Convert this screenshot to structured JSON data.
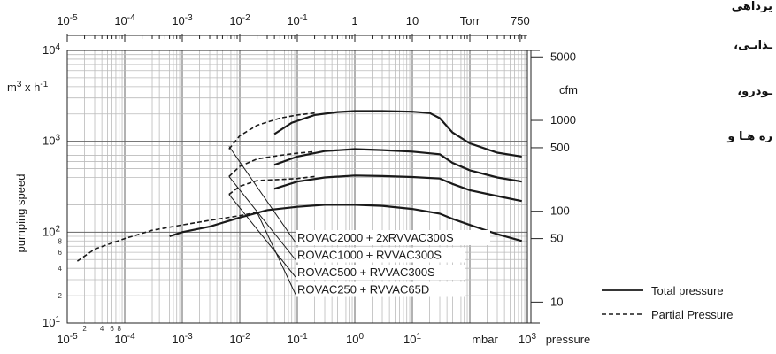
{
  "persian_text": [
    "یرداهی",
    "ـذایـی،",
    "ـودرو،",
    "ره هـا و"
  ],
  "chart_data": {
    "type": "line",
    "xscale": "log",
    "yscale": "log",
    "grid": true,
    "xlim": [
      1e-05,
      1000
    ],
    "ylim": [
      10,
      10000
    ],
    "bottom_ticks": [
      {
        "v": 1e-05,
        "base": "10",
        "exp": "-5"
      },
      {
        "v": 0.0001,
        "base": "10",
        "exp": "-4"
      },
      {
        "v": 0.001,
        "base": "10",
        "exp": "-3"
      },
      {
        "v": 0.01,
        "base": "10",
        "exp": "-2"
      },
      {
        "v": 0.1,
        "base": "10",
        "exp": "-1"
      },
      {
        "v": 1,
        "base": "10",
        "exp": "0"
      },
      {
        "v": 10,
        "base": "10",
        "exp": "1"
      },
      {
        "v": 1000,
        "base": "10",
        "exp": "3"
      }
    ],
    "bottom_minor_labels": [
      {
        "v": 2e-05,
        "text": "2"
      },
      {
        "v": 4e-05,
        "text": "4"
      },
      {
        "v": 6e-05,
        "text": "6"
      },
      {
        "v": 8e-05,
        "text": "8"
      }
    ],
    "xlabel_mbar": "mbar",
    "xlabel_pressure": "pressure",
    "top_ticks": [
      {
        "v": 1e-05,
        "base": "10",
        "exp": "-5"
      },
      {
        "v": 0.0001,
        "base": "10",
        "exp": "-4"
      },
      {
        "v": 0.001,
        "base": "10",
        "exp": "-3"
      },
      {
        "v": 0.01,
        "base": "10",
        "exp": "-2"
      },
      {
        "v": 0.1,
        "base": "10",
        "exp": "-1"
      },
      {
        "v": 1,
        "base": "1",
        "exp": ""
      },
      {
        "v": 10,
        "base": "10",
        "exp": ""
      },
      {
        "v": 100,
        "base": "Torr",
        "exp": ""
      },
      {
        "v": 750,
        "base": "750",
        "exp": ""
      }
    ],
    "left_ticks": [
      {
        "v": 10,
        "base": "10",
        "exp": "1"
      },
      {
        "v": 100,
        "base": "10",
        "exp": "2"
      },
      {
        "v": 1000,
        "base": "10",
        "exp": "3"
      },
      {
        "v": 10000,
        "base": "10",
        "exp": "4"
      }
    ],
    "left_minor_labels": [
      {
        "v": 20,
        "text": "2"
      },
      {
        "v": 40,
        "text": "4"
      },
      {
        "v": 60,
        "text": "6"
      },
      {
        "v": 80,
        "text": "8"
      }
    ],
    "ylabel_unit": {
      "base": "m",
      "sup1": "3",
      "mid": " x h",
      "sup2": "-1"
    },
    "ylabel": "pumping speed",
    "cfm_unit": "cfm",
    "cfm_ticks": [
      {
        "cfm": 5000,
        "text": "5000"
      },
      {
        "cfm": 1000,
        "text": "1000"
      },
      {
        "cfm": 500,
        "text": "500"
      },
      {
        "cfm": 100,
        "text": "100"
      },
      {
        "cfm": 50,
        "text": "50"
      },
      {
        "cfm": 10,
        "text": "10"
      }
    ],
    "series": [
      {
        "name": "ROVAC2000 + 2xRVVAC300S",
        "partial": [
          [
            0.0065,
            820
          ],
          [
            0.01,
            1150
          ],
          [
            0.02,
            1500
          ],
          [
            0.05,
            1800
          ],
          [
            0.1,
            1950
          ],
          [
            0.2,
            2050
          ]
        ],
        "total": [
          [
            0.04,
            1200
          ],
          [
            0.08,
            1600
          ],
          [
            0.2,
            1950
          ],
          [
            0.5,
            2100
          ],
          [
            1,
            2150
          ],
          [
            3,
            2150
          ],
          [
            10,
            2120
          ],
          [
            20,
            2050
          ],
          [
            30,
            1800
          ],
          [
            50,
            1250
          ],
          [
            100,
            950
          ],
          [
            300,
            750
          ],
          [
            800,
            680
          ]
        ]
      },
      {
        "name": "ROVAC1000 + RVVAC300S",
        "partial": [
          [
            0.0065,
            410
          ],
          [
            0.01,
            530
          ],
          [
            0.02,
            640
          ],
          [
            0.05,
            700
          ],
          [
            0.1,
            740
          ],
          [
            0.2,
            770
          ]
        ],
        "total": [
          [
            0.04,
            550
          ],
          [
            0.1,
            680
          ],
          [
            0.3,
            780
          ],
          [
            1,
            820
          ],
          [
            3,
            800
          ],
          [
            10,
            770
          ],
          [
            30,
            720
          ],
          [
            50,
            580
          ],
          [
            100,
            480
          ],
          [
            300,
            400
          ],
          [
            800,
            360
          ]
        ]
      },
      {
        "name": "ROVAC500 + RVVAC300S",
        "partial": [
          [
            0.0065,
            260
          ],
          [
            0.01,
            320
          ],
          [
            0.02,
            370
          ],
          [
            0.05,
            380
          ],
          [
            0.1,
            390
          ],
          [
            0.2,
            410
          ]
        ],
        "total": [
          [
            0.04,
            300
          ],
          [
            0.1,
            360
          ],
          [
            0.3,
            400
          ],
          [
            1,
            420
          ],
          [
            3,
            415
          ],
          [
            10,
            405
          ],
          [
            30,
            390
          ],
          [
            50,
            340
          ],
          [
            100,
            290
          ],
          [
            300,
            250
          ],
          [
            800,
            220
          ]
        ]
      },
      {
        "name": "ROVAC250 + RVVAC65D",
        "partial": [
          [
            1.5e-05,
            48
          ],
          [
            3e-05,
            65
          ],
          [
            0.0001,
            85
          ],
          [
            0.0003,
            105
          ],
          [
            0.001,
            120
          ],
          [
            0.003,
            135
          ],
          [
            0.01,
            152
          ],
          [
            0.02,
            165
          ]
        ],
        "total": [
          [
            0.0006,
            90
          ],
          [
            0.001,
            100
          ],
          [
            0.003,
            115
          ],
          [
            0.01,
            145
          ],
          [
            0.03,
            175
          ],
          [
            0.1,
            190
          ],
          [
            0.3,
            200
          ],
          [
            1,
            200
          ],
          [
            3,
            195
          ],
          [
            10,
            180
          ],
          [
            30,
            160
          ],
          [
            50,
            140
          ],
          [
            100,
            120
          ],
          [
            300,
            95
          ],
          [
            800,
            80
          ]
        ]
      }
    ],
    "label_attach": [
      [
        0.0065,
        880
      ],
      [
        0.0065,
        410
      ],
      [
        0.0065,
        260
      ],
      [
        0.02,
        165
      ]
    ],
    "legend": [
      {
        "style": "solid",
        "label": "Total pressure"
      },
      {
        "style": "dashed",
        "label": "Partial Pressure"
      }
    ]
  }
}
